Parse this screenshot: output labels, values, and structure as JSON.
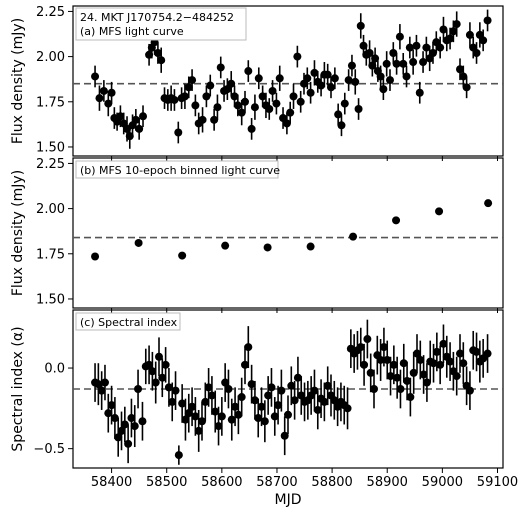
{
  "chart_data": [
    {
      "type": "scatter",
      "panel_label": "(a) MFS light curve",
      "source_name": "24. MKT J170754.2−484252",
      "ylabel": "Flux density (mJy)",
      "ylim": [
        1.45,
        2.28
      ],
      "yticks": [
        "1.50",
        "1.75",
        "2.00",
        "2.25"
      ],
      "ytick_values": [
        1.5,
        1.75,
        2.0,
        2.25
      ],
      "mean_line": 1.85,
      "points": [
        [
          58370,
          1.89,
          0.06
        ],
        [
          58378,
          1.77,
          0.07
        ],
        [
          58386,
          1.81,
          0.06
        ],
        [
          58394,
          1.74,
          0.07
        ],
        [
          58400,
          1.8,
          0.06
        ],
        [
          58405,
          1.66,
          0.06
        ],
        [
          58410,
          1.64,
          0.05
        ],
        [
          58416,
          1.67,
          0.06
        ],
        [
          58422,
          1.63,
          0.06
        ],
        [
          58428,
          1.6,
          0.07
        ],
        [
          58433,
          1.56,
          0.07
        ],
        [
          58438,
          1.62,
          0.06
        ],
        [
          58444,
          1.65,
          0.06
        ],
        [
          58450,
          1.6,
          0.06
        ],
        [
          58457,
          1.67,
          0.06
        ],
        [
          58468,
          2.01,
          0.06
        ],
        [
          58473,
          2.05,
          0.06
        ],
        [
          58478,
          2.08,
          0.07
        ],
        [
          58484,
          2.02,
          0.06
        ],
        [
          58490,
          1.98,
          0.07
        ],
        [
          58496,
          1.77,
          0.06
        ],
        [
          58502,
          1.76,
          0.06
        ],
        [
          58508,
          1.77,
          0.07
        ],
        [
          58514,
          1.76,
          0.06
        ],
        [
          58521,
          1.58,
          0.06
        ],
        [
          58527,
          1.77,
          0.06
        ],
        [
          58533,
          1.78,
          0.07
        ],
        [
          58540,
          1.83,
          0.06
        ],
        [
          58546,
          1.87,
          0.06
        ],
        [
          58552,
          1.73,
          0.06
        ],
        [
          58558,
          1.63,
          0.06
        ],
        [
          58565,
          1.65,
          0.07
        ],
        [
          58572,
          1.78,
          0.06
        ],
        [
          58579,
          1.84,
          0.06
        ],
        [
          58586,
          1.65,
          0.06
        ],
        [
          58592,
          1.72,
          0.07
        ],
        [
          58598,
          1.94,
          0.06
        ],
        [
          58604,
          1.81,
          0.06
        ],
        [
          58610,
          1.82,
          0.06
        ],
        [
          58617,
          1.85,
          0.07
        ],
        [
          58623,
          1.78,
          0.06
        ],
        [
          58629,
          1.73,
          0.06
        ],
        [
          58636,
          1.69,
          0.07
        ],
        [
          58642,
          1.75,
          0.06
        ],
        [
          58648,
          1.92,
          0.06
        ],
        [
          58654,
          1.6,
          0.06
        ],
        [
          58660,
          1.72,
          0.07
        ],
        [
          58667,
          1.88,
          0.06
        ],
        [
          58674,
          1.78,
          0.06
        ],
        [
          58680,
          1.73,
          0.07
        ],
        [
          58686,
          1.71,
          0.06
        ],
        [
          58692,
          1.81,
          0.06
        ],
        [
          58699,
          1.74,
          0.06
        ],
        [
          58705,
          1.88,
          0.07
        ],
        [
          58711,
          1.66,
          0.06
        ],
        [
          58718,
          1.63,
          0.06
        ],
        [
          58724,
          1.69,
          0.06
        ],
        [
          58730,
          1.78,
          0.07
        ],
        [
          58737,
          2.0,
          0.06
        ],
        [
          58743,
          1.75,
          0.06
        ],
        [
          58749,
          1.85,
          0.06
        ],
        [
          58755,
          1.88,
          0.06
        ],
        [
          58761,
          1.8,
          0.06
        ],
        [
          58768,
          1.91,
          0.07
        ],
        [
          58774,
          1.86,
          0.06
        ],
        [
          58780,
          1.84,
          0.06
        ],
        [
          58786,
          1.9,
          0.07
        ],
        [
          58792,
          1.9,
          0.06
        ],
        [
          58798,
          1.83,
          0.06
        ],
        [
          58805,
          1.88,
          0.06
        ],
        [
          58811,
          1.68,
          0.06
        ],
        [
          58817,
          1.62,
          0.06
        ],
        [
          58823,
          1.74,
          0.06
        ],
        [
          58830,
          1.87,
          0.06
        ],
        [
          58836,
          1.95,
          0.06
        ],
        [
          58842,
          1.86,
          0.07
        ],
        [
          58848,
          1.71,
          0.06
        ],
        [
          58852,
          2.17,
          0.07
        ],
        [
          58857,
          2.06,
          0.06
        ],
        [
          58862,
          2.01,
          0.06
        ],
        [
          58868,
          2.02,
          0.07
        ],
        [
          58873,
          1.95,
          0.06
        ],
        [
          58878,
          1.99,
          0.06
        ],
        [
          58883,
          1.92,
          0.06
        ],
        [
          58888,
          1.89,
          0.06
        ],
        [
          58893,
          1.82,
          0.06
        ],
        [
          58899,
          1.96,
          0.07
        ],
        [
          58905,
          1.87,
          0.06
        ],
        [
          58911,
          2.02,
          0.06
        ],
        [
          58917,
          1.96,
          0.06
        ],
        [
          58923,
          2.11,
          0.07
        ],
        [
          58929,
          1.96,
          0.06
        ],
        [
          58935,
          1.89,
          0.06
        ],
        [
          58941,
          2.05,
          0.06
        ],
        [
          58947,
          1.97,
          0.07
        ],
        [
          58953,
          2.06,
          0.06
        ],
        [
          58959,
          1.8,
          0.06
        ],
        [
          58965,
          1.97,
          0.06
        ],
        [
          58971,
          2.05,
          0.06
        ],
        [
          58977,
          1.99,
          0.07
        ],
        [
          58983,
          2.02,
          0.06
        ],
        [
          58989,
          2.08,
          0.06
        ],
        [
          58996,
          2.05,
          0.06
        ],
        [
          59002,
          2.15,
          0.07
        ],
        [
          59008,
          2.09,
          0.06
        ],
        [
          59014,
          2.1,
          0.06
        ],
        [
          59020,
          2.14,
          0.06
        ],
        [
          59026,
          2.18,
          0.07
        ],
        [
          59032,
          1.93,
          0.06
        ],
        [
          59038,
          1.89,
          0.06
        ],
        [
          59044,
          1.83,
          0.06
        ],
        [
          59050,
          2.12,
          0.07
        ],
        [
          59056,
          2.05,
          0.06
        ],
        [
          59062,
          2.02,
          0.06
        ],
        [
          59068,
          2.12,
          0.07
        ],
        [
          59074,
          2.09,
          0.06
        ],
        [
          59082,
          2.2,
          0.06
        ]
      ]
    },
    {
      "type": "scatter",
      "panel_label": "(b) MFS 10-epoch binned light curve",
      "ylabel": "Flux density (mJy)",
      "ylim": [
        1.45,
        2.28
      ],
      "yticks": [
        "1.50",
        "1.75",
        "2.00",
        "2.25"
      ],
      "ytick_values": [
        1.5,
        1.75,
        2.0,
        2.25
      ],
      "mean_line": 1.84,
      "points": [
        [
          58370,
          1.735
        ],
        [
          58449,
          1.81
        ],
        [
          58528,
          1.74
        ],
        [
          58606,
          1.795
        ],
        [
          58683,
          1.785
        ],
        [
          58761,
          1.79
        ],
        [
          58838,
          1.845
        ],
        [
          58916,
          1.935
        ],
        [
          58994,
          1.985
        ],
        [
          59083,
          2.03
        ]
      ]
    },
    {
      "type": "scatter",
      "panel_label": "(c) Spectral index",
      "ylabel": "Spectral index (α)",
      "ylim": [
        -0.62,
        0.36
      ],
      "yticks": [
        "−0.5",
        "0.0"
      ],
      "ytick_values": [
        -0.5,
        0.0
      ],
      "mean_line": -0.13,
      "points": [
        [
          58370,
          -0.09,
          0.12
        ],
        [
          58376,
          -0.1,
          0.13
        ],
        [
          58382,
          -0.14,
          0.12
        ],
        [
          58388,
          -0.09,
          0.11
        ],
        [
          58394,
          -0.28,
          0.12
        ],
        [
          58400,
          -0.23,
          0.12
        ],
        [
          58406,
          -0.31,
          0.13
        ],
        [
          58412,
          -0.43,
          0.12
        ],
        [
          58418,
          -0.39,
          0.12
        ],
        [
          58424,
          -0.35,
          0.11
        ],
        [
          58430,
          -0.47,
          0.12
        ],
        [
          58436,
          -0.31,
          0.12
        ],
        [
          58442,
          -0.36,
          0.13
        ],
        [
          58448,
          -0.13,
          0.12
        ],
        [
          58456,
          -0.33,
          0.12
        ],
        [
          58462,
          0.01,
          0.11
        ],
        [
          58468,
          0.02,
          0.12
        ],
        [
          58474,
          -0.02,
          0.12
        ],
        [
          58480,
          -0.09,
          0.13
        ],
        [
          58486,
          0.07,
          0.12
        ],
        [
          58492,
          -0.06,
          0.12
        ],
        [
          58498,
          0.02,
          0.11
        ],
        [
          58504,
          -0.12,
          0.12
        ],
        [
          58510,
          -0.21,
          0.12
        ],
        [
          58516,
          -0.14,
          0.12
        ],
        [
          58522,
          -0.54,
          0.06
        ],
        [
          58528,
          -0.22,
          0.12
        ],
        [
          58534,
          -0.32,
          0.13
        ],
        [
          58540,
          -0.28,
          0.12
        ],
        [
          58546,
          -0.24,
          0.12
        ],
        [
          58552,
          -0.3,
          0.12
        ],
        [
          58558,
          -0.39,
          0.13
        ],
        [
          58564,
          -0.33,
          0.12
        ],
        [
          58570,
          -0.21,
          0.12
        ],
        [
          58576,
          -0.12,
          0.12
        ],
        [
          58582,
          -0.17,
          0.12
        ],
        [
          58588,
          -0.27,
          0.13
        ],
        [
          58594,
          -0.36,
          0.12
        ],
        [
          58600,
          -0.3,
          0.12
        ],
        [
          58606,
          -0.09,
          0.12
        ],
        [
          58612,
          -0.13,
          0.12
        ],
        [
          58618,
          -0.32,
          0.13
        ],
        [
          58624,
          -0.24,
          0.12
        ],
        [
          58630,
          -0.29,
          0.12
        ],
        [
          58636,
          -0.18,
          0.12
        ],
        [
          58642,
          0.02,
          0.12
        ],
        [
          58648,
          0.13,
          0.13
        ],
        [
          58654,
          -0.1,
          0.12
        ],
        [
          58660,
          -0.2,
          0.12
        ],
        [
          58666,
          -0.31,
          0.12
        ],
        [
          58672,
          -0.24,
          0.12
        ],
        [
          58678,
          -0.33,
          0.13
        ],
        [
          58684,
          -0.17,
          0.12
        ],
        [
          58690,
          -0.12,
          0.12
        ],
        [
          58696,
          -0.3,
          0.12
        ],
        [
          58702,
          -0.23,
          0.12
        ],
        [
          58708,
          -0.14,
          0.13
        ],
        [
          58714,
          -0.42,
          0.12
        ],
        [
          58720,
          -0.29,
          0.12
        ],
        [
          58726,
          -0.11,
          0.12
        ],
        [
          58732,
          -0.2,
          0.12
        ],
        [
          58738,
          -0.06,
          0.13
        ],
        [
          58744,
          -0.17,
          0.12
        ],
        [
          58750,
          -0.21,
          0.12
        ],
        [
          58756,
          -0.2,
          0.12
        ],
        [
          58762,
          -0.17,
          0.12
        ],
        [
          58768,
          -0.14,
          0.13
        ],
        [
          58774,
          -0.26,
          0.12
        ],
        [
          58780,
          -0.19,
          0.12
        ],
        [
          58786,
          -0.21,
          0.12
        ],
        [
          58792,
          -0.11,
          0.12
        ],
        [
          58798,
          -0.17,
          0.13
        ],
        [
          58804,
          -0.2,
          0.12
        ],
        [
          58810,
          -0.24,
          0.12
        ],
        [
          58816,
          -0.21,
          0.12
        ],
        [
          58822,
          -0.23,
          0.12
        ],
        [
          58828,
          -0.25,
          0.13
        ],
        [
          58834,
          0.12,
          0.12
        ],
        [
          58840,
          0.09,
          0.12
        ],
        [
          58846,
          0.11,
          0.12
        ],
        [
          58852,
          0.13,
          0.12
        ],
        [
          58858,
          0.02,
          0.13
        ],
        [
          58864,
          0.18,
          0.12
        ],
        [
          58870,
          -0.03,
          0.12
        ],
        [
          58876,
          -0.13,
          0.12
        ],
        [
          58882,
          0.08,
          0.12
        ],
        [
          58888,
          0.05,
          0.13
        ],
        [
          58894,
          0.13,
          0.12
        ],
        [
          58900,
          0.05,
          0.12
        ],
        [
          58906,
          -0.05,
          0.12
        ],
        [
          58912,
          0.02,
          0.12
        ],
        [
          58918,
          -0.06,
          0.13
        ],
        [
          58924,
          -0.13,
          0.12
        ],
        [
          58930,
          0.03,
          0.12
        ],
        [
          58936,
          -0.08,
          0.12
        ],
        [
          58942,
          -0.18,
          0.12
        ],
        [
          58948,
          -0.03,
          0.13
        ],
        [
          58954,
          0.09,
          0.12
        ],
        [
          58960,
          0.05,
          0.12
        ],
        [
          58966,
          -0.04,
          0.12
        ],
        [
          58972,
          -0.09,
          0.12
        ],
        [
          58978,
          0.04,
          0.13
        ],
        [
          58984,
          0.03,
          0.12
        ],
        [
          58990,
          0.1,
          0.12
        ],
        [
          58996,
          0.02,
          0.12
        ],
        [
          59002,
          0.15,
          0.12
        ],
        [
          59008,
          0.07,
          0.13
        ],
        [
          59014,
          0.04,
          0.12
        ],
        [
          59020,
          -0.02,
          0.12
        ],
        [
          59026,
          -0.05,
          0.12
        ],
        [
          59032,
          0.09,
          0.12
        ],
        [
          59038,
          0.03,
          0.13
        ],
        [
          59044,
          -0.11,
          0.12
        ],
        [
          59050,
          -0.14,
          0.12
        ],
        [
          59056,
          0.11,
          0.12
        ],
        [
          59062,
          0.1,
          0.12
        ],
        [
          59068,
          0.04,
          0.13
        ],
        [
          59074,
          0.06,
          0.12
        ],
        [
          59082,
          0.09,
          0.12
        ]
      ]
    }
  ],
  "xaxis": {
    "xlabel": "MJD",
    "xlim": [
      58330,
      59110
    ],
    "xticks": [
      "58400",
      "58500",
      "58600",
      "58700",
      "58800",
      "58900",
      "59000",
      "59100"
    ],
    "xtick_values": [
      58400,
      58500,
      58600,
      58700,
      58800,
      58900,
      59000,
      59100
    ]
  },
  "colors": {
    "marker": "#000000",
    "mean_line": "#555555"
  }
}
